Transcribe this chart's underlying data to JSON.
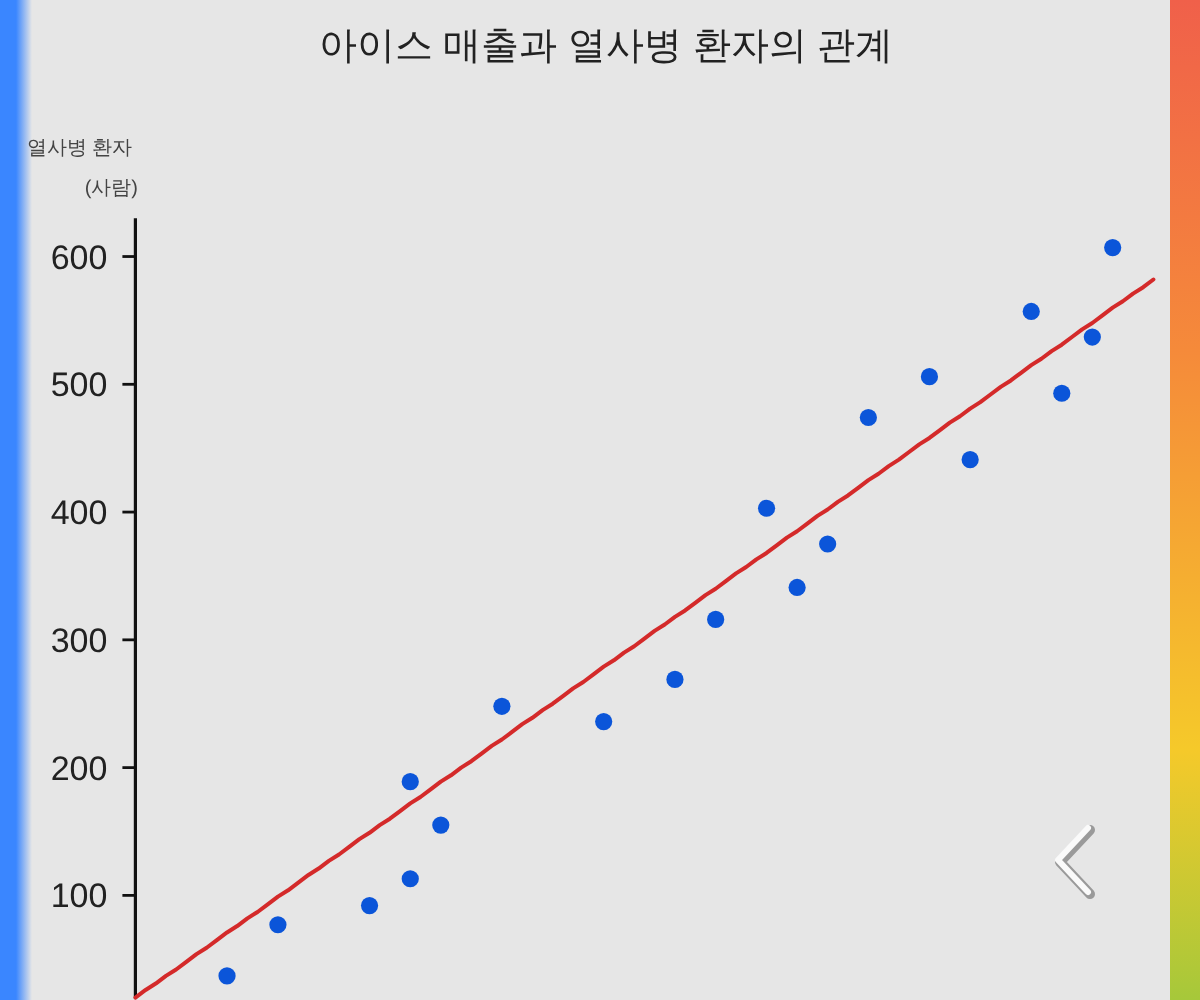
{
  "chart_data": {
    "type": "scatter",
    "title": "아이스 매출과 열사병 환자의 관계",
    "ylabel": "열사병 환자 (사람)",
    "categories": [
      null,
      null,
      null,
      null,
      null,
      null,
      null,
      null,
      null,
      null,
      null,
      null,
      null,
      null,
      null,
      null,
      null,
      null,
      null,
      null,
      null,
      null,
      null,
      null,
      null,
      null,
      null,
      null,
      null,
      null,
      null,
      null,
      null,
      null,
      null,
      null,
      null,
      null,
      null,
      null,
      null,
      null,
      null,
      null,
      null,
      null,
      null,
      null,
      null,
      null,
      null,
      null,
      null,
      null,
      null,
      null,
      null,
      null,
      null,
      null,
      null,
      null,
      null,
      null,
      null,
      null,
      null,
      null,
      null,
      null,
      null,
      null,
      null,
      null,
      null,
      null,
      null,
      null,
      null,
      null,
      null,
      null,
      null,
      null,
      null,
      null,
      null,
      null,
      null,
      null,
      null,
      null,
      null,
      null,
      null,
      null,
      null,
      null,
      null,
      null,
      null
    ],
    "ylim": [
      20,
      630
    ],
    "yticks": [
      100,
      200,
      300,
      400,
      500,
      600
    ],
    "tick_labels": "y",
    "marker": "circle",
    "series": [
      {
        "color": "#0b55d9",
        "values": [
          null,
          null,
          null,
          null,
          null,
          null,
          null,
          null,
          null,
          37,
          null,
          null,
          null,
          null,
          77,
          null,
          null,
          null,
          null,
          null,
          null,
          null,
          null,
          92,
          null,
          null,
          null,
          113,
          null,
          null,
          155,
          null,
          null,
          null,
          null,
          null,
          248,
          null,
          null,
          null,
          null,
          null,
          null,
          null,
          null,
          null,
          236,
          null,
          null,
          null,
          null,
          null,
          null,
          269,
          null,
          null,
          null,
          316,
          null,
          null,
          null,
          null,
          403,
          null,
          null,
          341,
          null,
          null,
          375,
          null,
          null,
          null,
          474,
          null,
          null,
          null,
          null,
          null,
          506,
          null,
          null,
          null,
          441,
          null,
          null,
          null,
          null,
          null,
          557,
          null,
          null,
          493,
          null,
          null,
          537,
          null,
          607,
          null,
          null,
          null,
          null
        ]
      },
      {
        "color": "#0b55d9",
        "values": [
          null,
          null,
          null,
          null,
          null,
          null,
          null,
          null,
          null,
          null,
          null,
          null,
          null,
          null,
          null,
          null,
          null,
          null,
          null,
          null,
          null,
          null,
          null,
          null,
          null,
          null,
          null,
          189,
          null,
          null,
          null,
          null,
          null,
          null,
          null,
          null,
          null,
          null,
          null,
          null,
          null,
          null,
          null,
          null,
          null,
          null,
          null,
          null,
          null,
          null,
          null,
          null,
          null,
          null,
          null,
          null,
          null,
          null,
          null,
          null,
          null,
          null,
          null,
          null,
          null,
          null,
          null,
          null,
          null,
          null,
          null,
          null,
          null,
          null,
          null,
          null,
          null,
          null,
          null,
          null,
          null,
          null,
          null,
          null,
          null,
          null,
          null,
          null,
          null,
          null,
          null,
          null,
          null,
          null,
          null,
          null,
          null,
          null,
          null,
          null,
          null
        ]
      },
      {
        "type": "line",
        "marker": "none",
        "color": "#d42a2a",
        "values": [
          20,
          26,
          31,
          37,
          42,
          48,
          54,
          59,
          65,
          71,
          76,
          82,
          87,
          93,
          99,
          104,
          110,
          116,
          121,
          127,
          132,
          138,
          144,
          149,
          155,
          160,
          166,
          172,
          177,
          183,
          189,
          194,
          200,
          205,
          211,
          217,
          222,
          228,
          234,
          239,
          245,
          250,
          256,
          262,
          267,
          273,
          279,
          284,
          290,
          295,
          301,
          307,
          312,
          318,
          323,
          329,
          335,
          340,
          346,
          352,
          357,
          363,
          368,
          374,
          380,
          385,
          391,
          397,
          402,
          408,
          413,
          419,
          425,
          430,
          436,
          441,
          447,
          453,
          458,
          464,
          470,
          475,
          481,
          486,
          492,
          498,
          503,
          509,
          515,
          520,
          526,
          531,
          537,
          543,
          548,
          554,
          560,
          565,
          571,
          576,
          582
        ]
      }
    ]
  }
}
